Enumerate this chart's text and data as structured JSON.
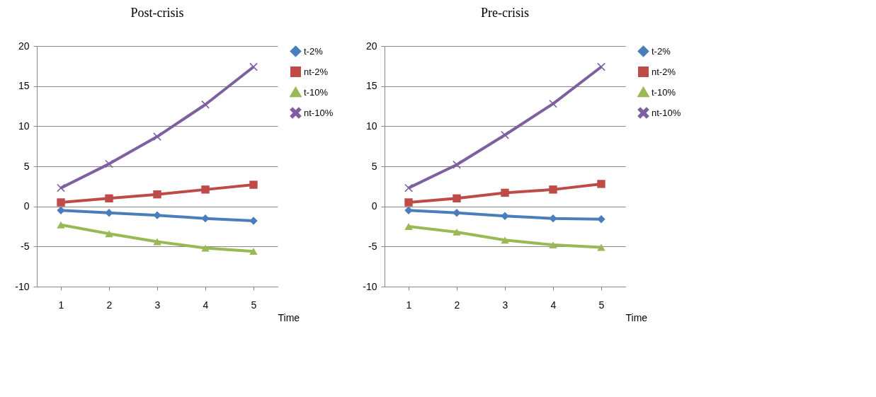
{
  "chart_data": [
    {
      "type": "line",
      "title": "Post-crisis",
      "xlabel": "Time",
      "categories": [
        "1",
        "2",
        "3",
        "4",
        "5"
      ],
      "ylim": [
        -10,
        20
      ],
      "yticks": [
        -10,
        -5,
        0,
        5,
        10,
        15,
        20
      ],
      "grid": "y",
      "legend": "right",
      "series": [
        {
          "name": "t-2%",
          "color": "#4a7ebb",
          "marker": "diamond",
          "values": [
            -0.5,
            -0.8,
            -1.1,
            -1.5,
            -1.8
          ]
        },
        {
          "name": "nt-2%",
          "color": "#be4b48",
          "marker": "square",
          "values": [
            0.5,
            1.0,
            1.5,
            2.1,
            2.7
          ]
        },
        {
          "name": "t-10%",
          "color": "#98b954",
          "marker": "triangle",
          "values": [
            -2.3,
            -3.4,
            -4.4,
            -5.2,
            -5.6
          ]
        },
        {
          "name": "nt-10%",
          "color": "#7d60a0",
          "marker": "cross",
          "values": [
            2.3,
            5.3,
            8.7,
            12.7,
            17.4
          ]
        }
      ]
    },
    {
      "type": "line",
      "title": "Pre-crisis",
      "xlabel": "Time",
      "categories": [
        "1",
        "2",
        "3",
        "4",
        "5"
      ],
      "ylim": [
        -10,
        20
      ],
      "yticks": [
        -10,
        -5,
        0,
        5,
        10,
        15,
        20
      ],
      "grid": "y",
      "legend": "right",
      "series": [
        {
          "name": "t-2%",
          "color": "#4a7ebb",
          "marker": "diamond",
          "values": [
            -0.5,
            -0.8,
            -1.2,
            -1.5,
            -1.6
          ]
        },
        {
          "name": "nt-2%",
          "color": "#be4b48",
          "marker": "square",
          "values": [
            0.5,
            1.0,
            1.7,
            2.1,
            2.8
          ]
        },
        {
          "name": "t-10%",
          "color": "#98b954",
          "marker": "triangle",
          "values": [
            -2.5,
            -3.2,
            -4.2,
            -4.8,
            -5.1
          ]
        },
        {
          "name": "nt-10%",
          "color": "#7d60a0",
          "marker": "cross",
          "values": [
            2.3,
            5.2,
            8.9,
            12.8,
            17.4
          ]
        }
      ]
    }
  ]
}
